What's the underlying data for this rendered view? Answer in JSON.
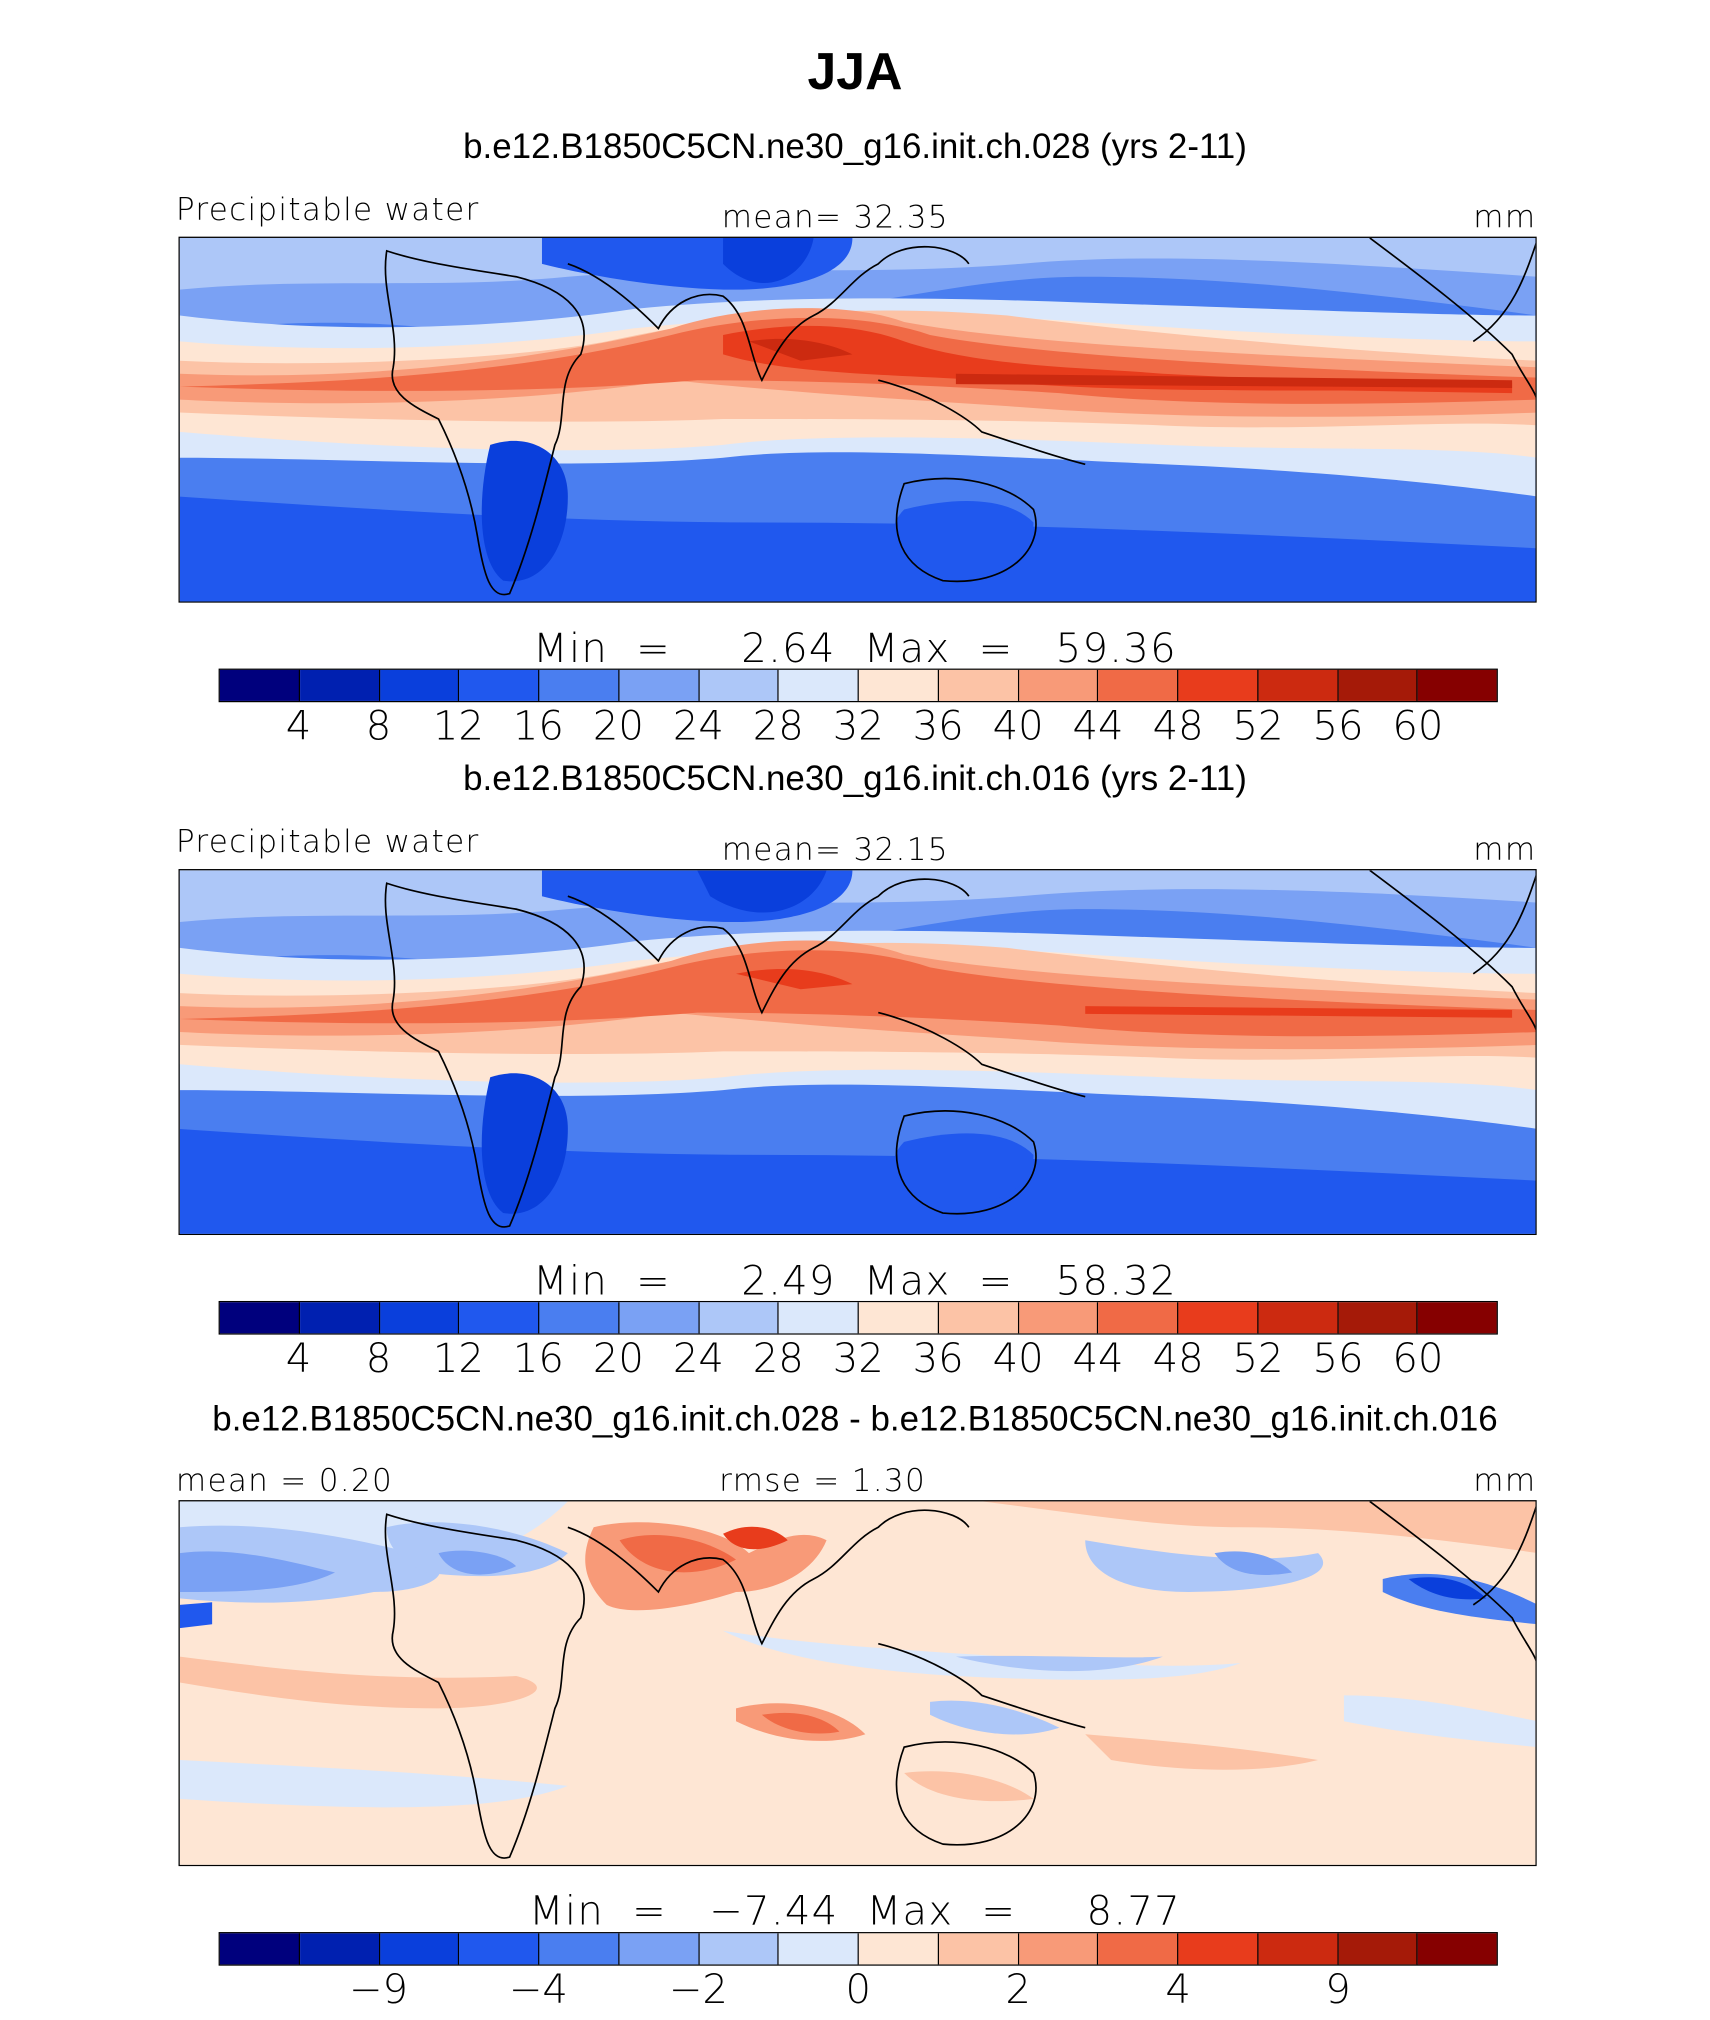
{
  "figure": {
    "title": "JJA"
  },
  "colors": {
    "cmap": [
      "#00007d",
      "#0020b0",
      "#0a3fdc",
      "#2058ee",
      "#4a7ef0",
      "#7aa1f4",
      "#adc7f8",
      "#dbe8fb",
      "#fee6d4",
      "#fcc3a6",
      "#f89a78",
      "#f06a46",
      "#e83c1c",
      "#cc2a10",
      "#a51a08",
      "#860000"
    ]
  },
  "panels": [
    {
      "title": "b.e12.B1850C5CN.ne30_g16.init.ch.028 (yrs 2-11)",
      "left_label": "Precipitable  water",
      "center_label": "mean=   32.35",
      "right_label": "mm",
      "minmax": "Min  =     2.64  Max  =   59.36",
      "ticks": [
        "4",
        "8",
        "12",
        "16",
        "20",
        "24",
        "28",
        "32",
        "36",
        "40",
        "44",
        "48",
        "52",
        "56",
        "60"
      ]
    },
    {
      "title": "b.e12.B1850C5CN.ne30_g16.init.ch.016 (yrs 2-11)",
      "left_label": "Precipitable  water",
      "center_label": "mean=   32.15",
      "right_label": "mm",
      "minmax": "Min  =     2.49  Max  =   58.32",
      "ticks": [
        "4",
        "8",
        "12",
        "16",
        "20",
        "24",
        "28",
        "32",
        "36",
        "40",
        "44",
        "48",
        "52",
        "56",
        "60"
      ]
    },
    {
      "title": "b.e12.B1850C5CN.ne30_g16.init.ch.028 - b.e12.B1850C5CN.ne30_g16.init.ch.016",
      "left_label": "mean  =    0.20",
      "center_label": "rmse  =    1.30",
      "right_label": "mm",
      "minmax": "Min  =   −7.44  Max  =     8.77",
      "ticks": [
        "−9",
        "−4",
        "−2",
        "0",
        "2",
        "4",
        "9"
      ]
    }
  ]
}
